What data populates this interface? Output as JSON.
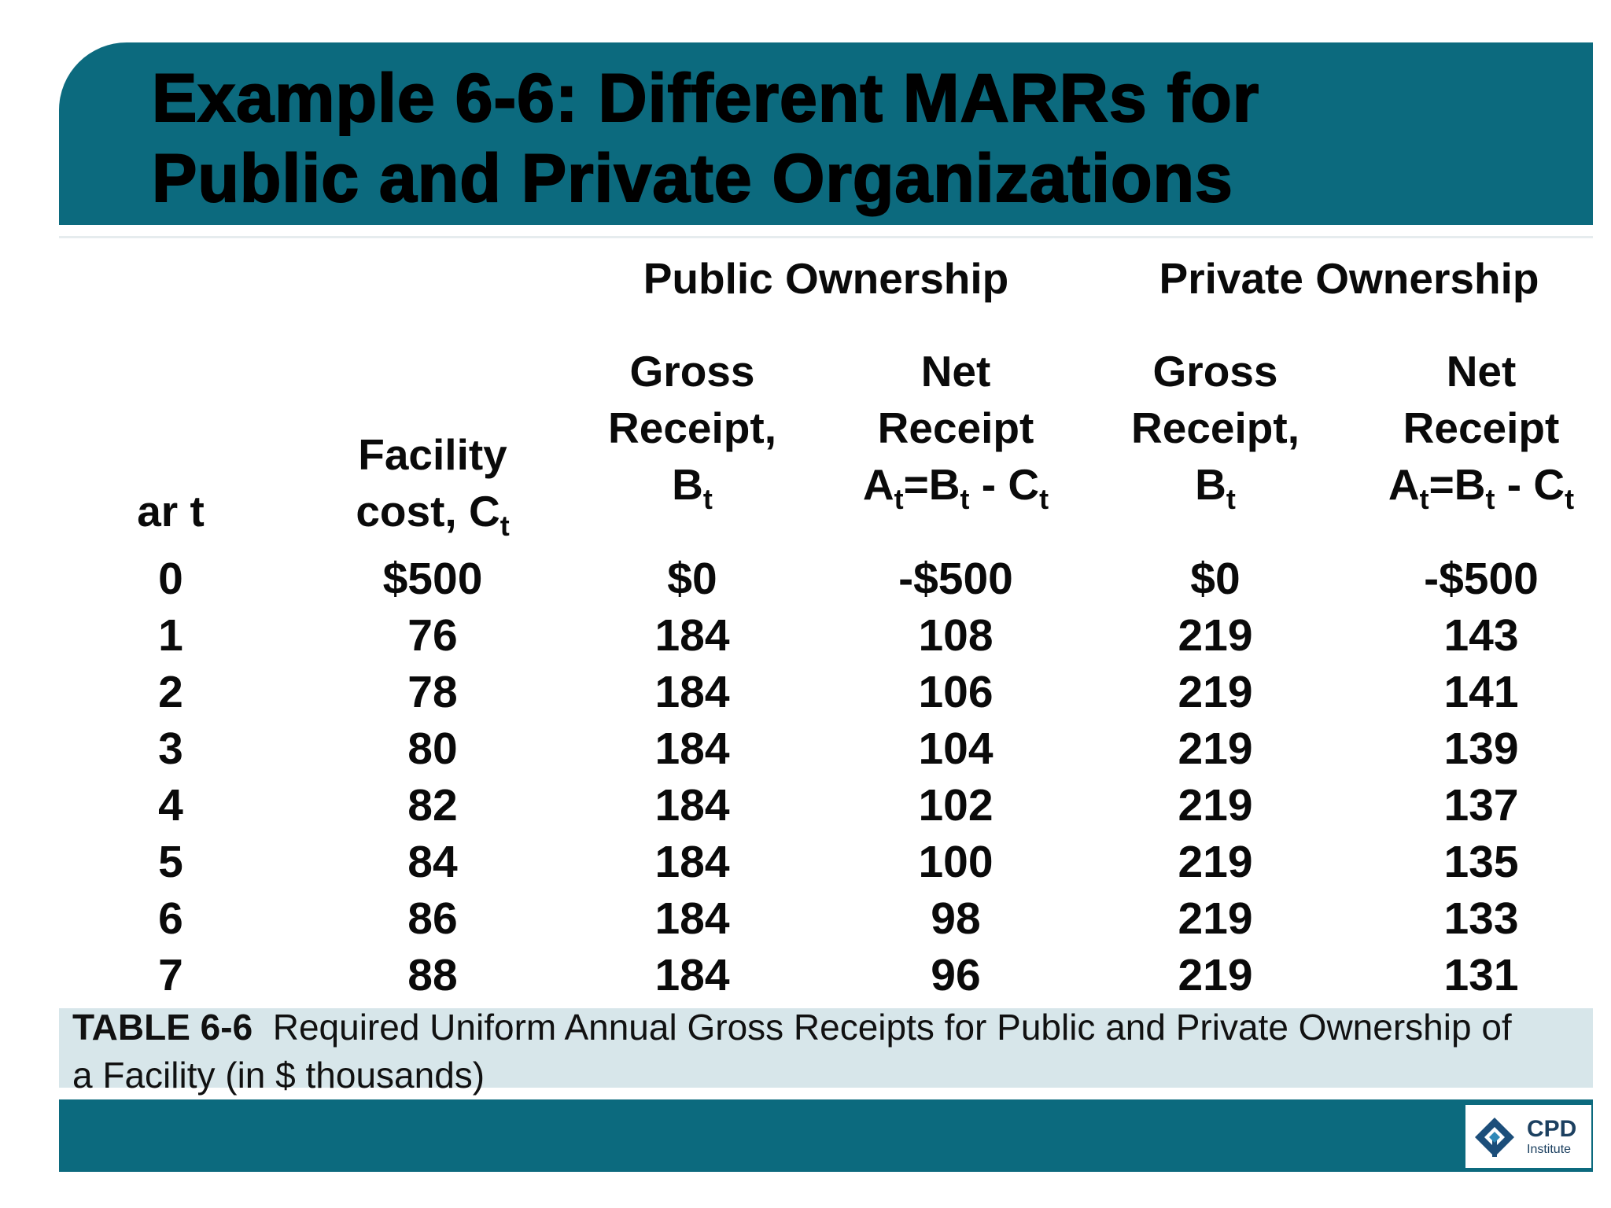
{
  "title": {
    "line1": "Example 6-6: Different MARRs for",
    "line2": "Public and Private Organizations"
  },
  "groups": {
    "public": "Public Ownership",
    "private": "Private Ownership"
  },
  "headers": {
    "year": "ar t",
    "facility": {
      "line1": "Facility",
      "line2": "cost, C",
      "sub": "t"
    },
    "gross": {
      "line1": "Gross",
      "line2": "Receipt,",
      "line3": "B",
      "sub": "t"
    },
    "net": {
      "line1": "Net",
      "line2": "Receipt",
      "a": "A",
      "sub1": "t",
      "eqb": "=B",
      "sub2": "t",
      "minus": " - C",
      "sub3": "t"
    }
  },
  "table": {
    "year": [
      "0",
      "1",
      "2",
      "3",
      "4",
      "5",
      "6",
      "7"
    ],
    "facility_cost": [
      "$500",
      "76",
      "78",
      "80",
      "82",
      "84",
      "86",
      "88"
    ],
    "public_gross": [
      "$0",
      "184",
      "184",
      "184",
      "184",
      "184",
      "184",
      "184"
    ],
    "public_net": [
      "-$500",
      "108",
      "106",
      "104",
      "102",
      "100",
      "98",
      "96"
    ],
    "private_gross": [
      "$0",
      "219",
      "219",
      "219",
      "219",
      "219",
      "219",
      "219"
    ],
    "private_net": [
      "-$500",
      "143",
      "141",
      "139",
      "137",
      "135",
      "133",
      "131"
    ]
  },
  "caption": {
    "label": "TABLE 6-6",
    "text": "  Required Uniform Annual Gross Receipts for Public and Private Ownership of a Facility (in $ thousands)"
  },
  "logo": {
    "name": "CPD",
    "sub": "Institute"
  },
  "colors": {
    "band": "#0c6a7e",
    "caption_bg": "#d7e6ea"
  }
}
